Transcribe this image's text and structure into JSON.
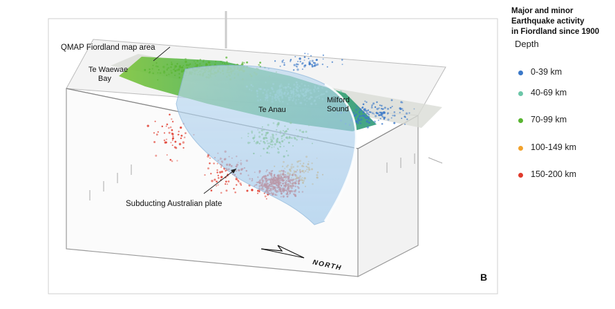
{
  "legend": {
    "title_lines": [
      "Major and minor",
      "Earthquake activity",
      "in Fiordland since 1900"
    ],
    "depth_label": "Depth",
    "items": [
      {
        "label": "0-39 km",
        "color": "#3a78c8"
      },
      {
        "label": "40-69 km",
        "color": "#6cc6a8"
      },
      {
        "label": "70-99 km",
        "color": "#59b531"
      },
      {
        "label": "100-149 km",
        "color": "#f2a22c"
      },
      {
        "label": "150-200 km",
        "color": "#e03a2c"
      }
    ]
  },
  "labels": {
    "qmap": "QMAP Fiordland map area",
    "te_waewae_line1": "Te Waewae",
    "te_waewae_line2": "Bay",
    "te_anau": "Te Anau",
    "milford_line1": "Milford",
    "milford_line2": "Sound",
    "subducting": "Subducting Australian plate",
    "north": "NORTH",
    "panel": "B"
  }
}
